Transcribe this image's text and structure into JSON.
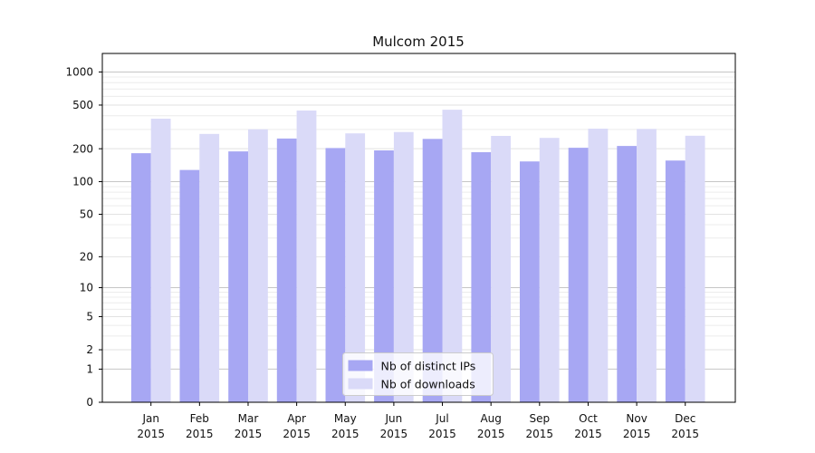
{
  "chart_data": {
    "type": "bar",
    "title": "Mulcom 2015",
    "categories": [
      "Jan",
      "Feb",
      "Mar",
      "Apr",
      "May",
      "Jun",
      "Jul",
      "Aug",
      "Sep",
      "Oct",
      "Nov",
      "Dec"
    ],
    "category_year": "2015",
    "series": [
      {
        "name": "Nb of distinct IPs",
        "color": "#a7a7f3",
        "values": [
          182,
          128,
          189,
          248,
          203,
          193,
          246,
          186,
          153,
          204,
          212,
          156
        ]
      },
      {
        "name": "Nb of downloads",
        "color": "#dadaf8",
        "values": [
          376,
          273,
          301,
          446,
          276,
          284,
          454,
          262,
          251,
          305,
          303,
          263
        ]
      }
    ],
    "ylabel": "",
    "xlabel": "",
    "yscale": "symlog (position proportional to log10(value+1))",
    "yticks": [
      0,
      1,
      2,
      5,
      10,
      20,
      50,
      100,
      200,
      500,
      1000
    ],
    "minor_gridlines": [
      3,
      4,
      6,
      7,
      8,
      9,
      30,
      40,
      60,
      70,
      80,
      90,
      300,
      400,
      600,
      700,
      800,
      900
    ],
    "ylim": [
      0,
      1475
    ],
    "grid": true,
    "legend_position": "lower center"
  },
  "style_colors": {
    "major_grid": "#c6c6c6",
    "labeled_grid": "#e2e2e2",
    "minor_grid": "#ececec",
    "axis": "#000000",
    "legend_border": "#cccccc",
    "legend_bg": "rgba(255,255,255,0.8)"
  }
}
